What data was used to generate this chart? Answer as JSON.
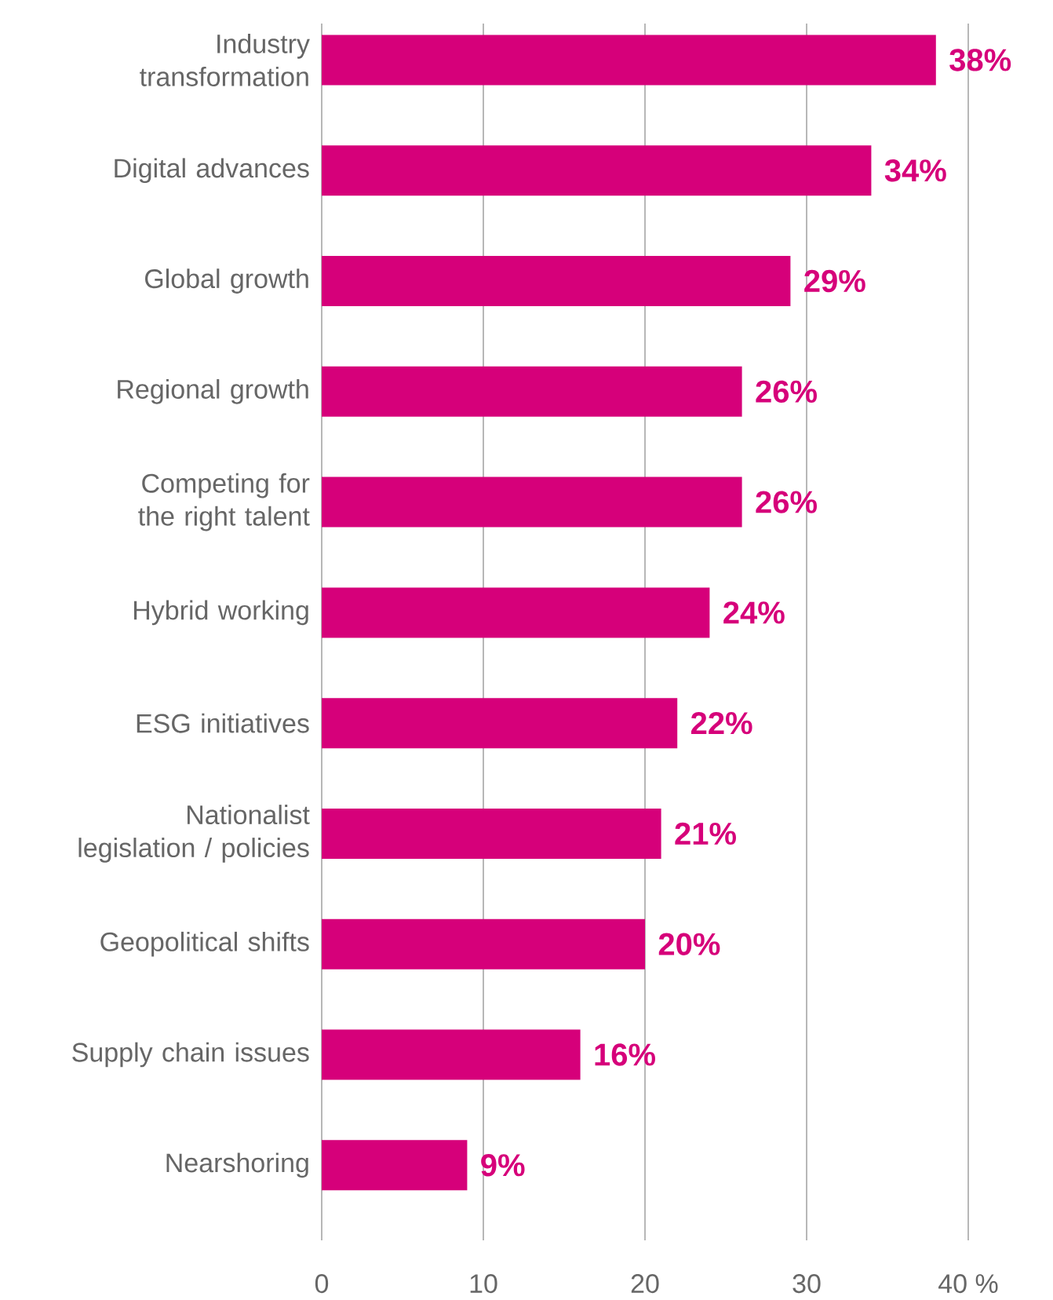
{
  "chart_data": {
    "type": "bar",
    "orientation": "horizontal",
    "categories": [
      "Industry transformation",
      "Digital advances",
      "Global growth",
      "Regional growth",
      "Competing for the right talent",
      "Hybrid working",
      "ESG initiatives",
      "Nationalist legislation / policies",
      "Geopolitical shifts",
      "Supply chain issues",
      "Nearshoring"
    ],
    "values": [
      38,
      34,
      29,
      26,
      26,
      24,
      22,
      21,
      20,
      16,
      9
    ],
    "value_labels": [
      "38%",
      "34%",
      "29%",
      "26%",
      "26%",
      "24%",
      "22%",
      "21%",
      "20%",
      "16%",
      "9%"
    ],
    "color": "#d6007a",
    "xlim": [
      0,
      40
    ],
    "xticks": [
      0,
      10,
      20,
      30,
      {
        "value": 40,
        "label": "40 %"
      }
    ],
    "grid": "x"
  }
}
